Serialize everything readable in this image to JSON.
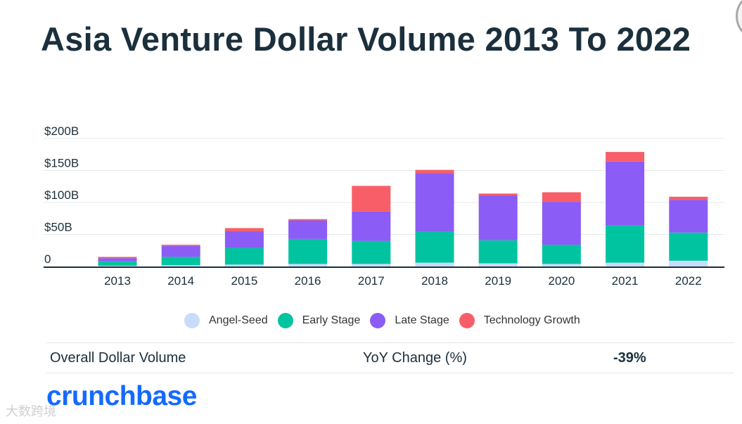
{
  "title": "Asia Venture Dollar Volume 2013 To 2022",
  "chart_data": {
    "type": "bar",
    "stacked": true,
    "categories": [
      "2013",
      "2014",
      "2015",
      "2016",
      "2017",
      "2018",
      "2019",
      "2020",
      "2021",
      "2022"
    ],
    "series": [
      {
        "name": "Angel-Seed",
        "color": "#c9dcfb",
        "values": [
          1,
          2,
          3,
          4,
          4,
          6,
          5,
          4,
          6,
          9
        ]
      },
      {
        "name": "Early Stage",
        "color": "#00c4a0",
        "values": [
          7,
          13,
          26,
          39,
          36,
          48,
          36,
          30,
          58,
          44
        ]
      },
      {
        "name": "Late Stage",
        "color": "#8b5cf6",
        "values": [
          5,
          17,
          26,
          29,
          46,
          92,
          70,
          67,
          100,
          51
        ]
      },
      {
        "name": "Technology Growth",
        "color": "#f85e68",
        "values": [
          2,
          2,
          5,
          2,
          40,
          5,
          3,
          15,
          15,
          5
        ]
      }
    ],
    "ylim": [
      0,
      200
    ],
    "yticks": [
      0,
      50,
      100,
      150,
      200
    ],
    "ytick_labels": [
      "0",
      "$50B",
      "$100B",
      "$150B",
      "$200B"
    ],
    "grid": true,
    "legend": "bottom"
  },
  "summary": {
    "label": "Overall Dollar Volume",
    "yoy_label": "YoY Change (%)",
    "yoy_value": "-39%"
  },
  "logo": "crunchbase",
  "watermark": "大数跨境"
}
